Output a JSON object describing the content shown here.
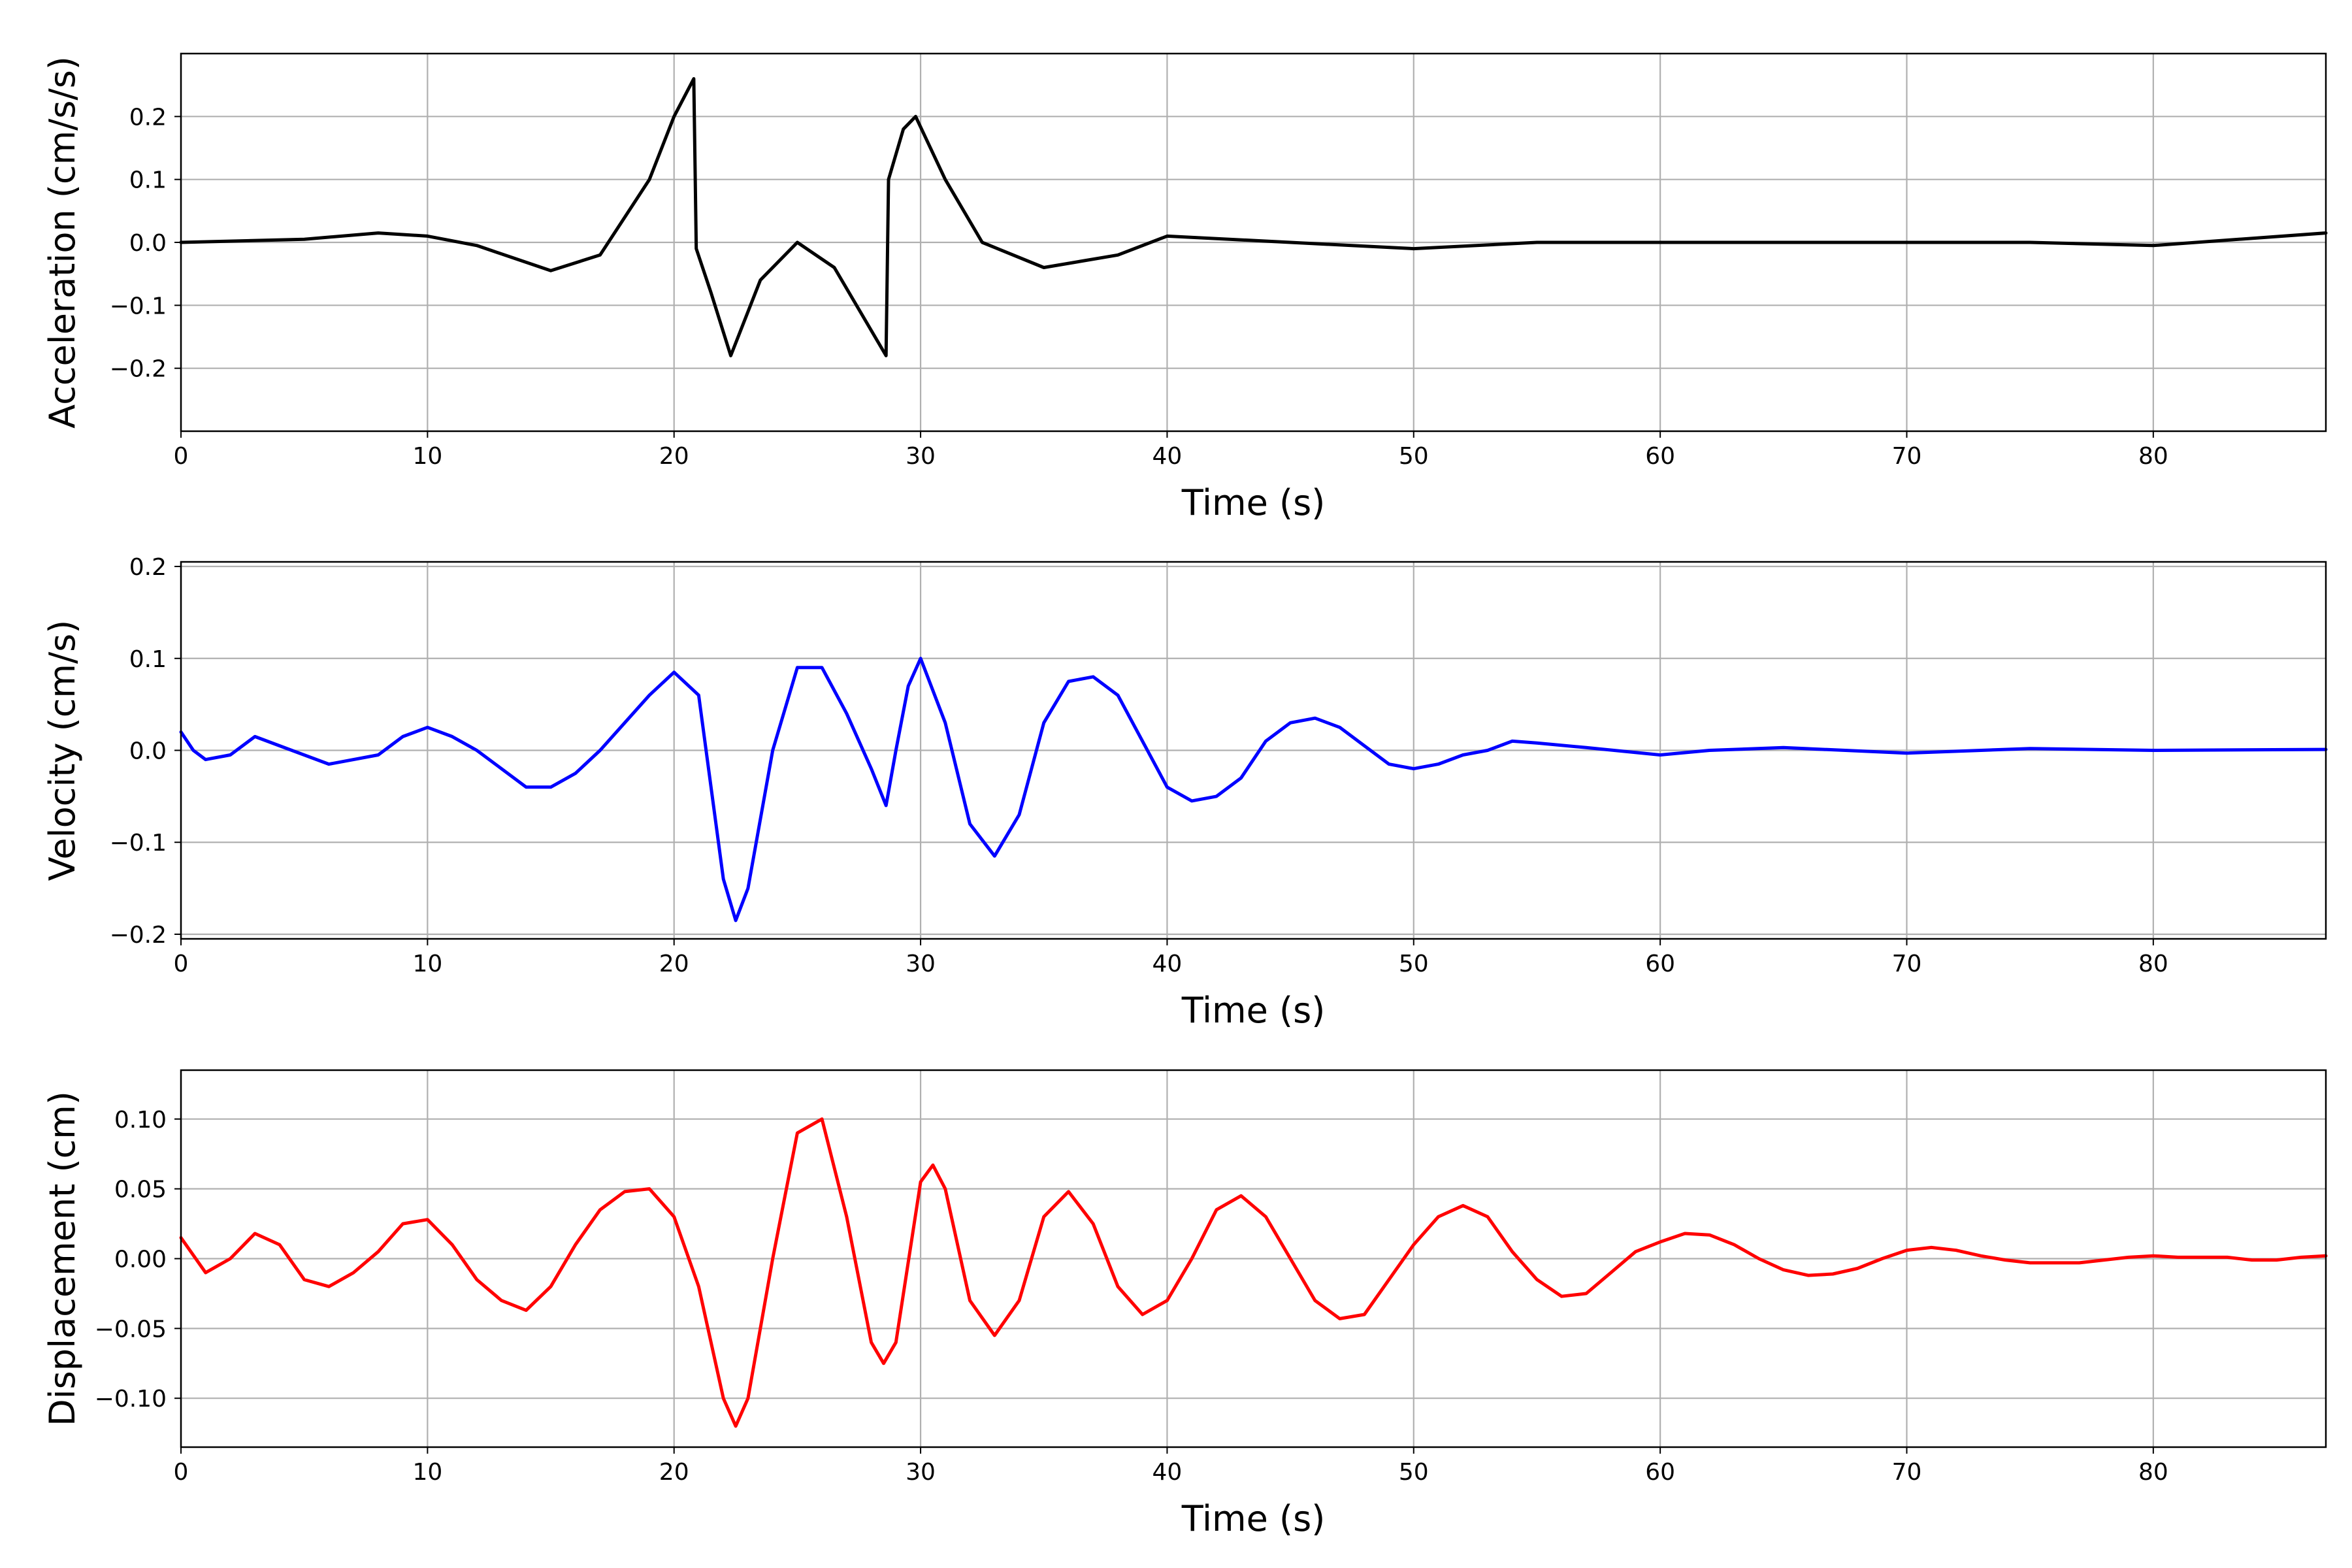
{
  "chart_data": [
    {
      "type": "line",
      "xlabel": "Time (s)",
      "ylabel": "Acceleration (cm/s/s)",
      "xlim": [
        0,
        87
      ],
      "ylim": [
        -0.3,
        0.3
      ],
      "xticks": [
        0,
        10,
        20,
        30,
        40,
        50,
        60,
        70,
        80
      ],
      "xtick_labels": [
        "0",
        "10",
        "20",
        "30",
        "40",
        "50",
        "60",
        "70",
        "80"
      ],
      "yticks": [
        -0.2,
        -0.1,
        0.0,
        0.1,
        0.2
      ],
      "ytick_labels": [
        "−0.2",
        "−0.1",
        "0.0",
        "0.1",
        "0.2"
      ],
      "grid": true,
      "series": [
        {
          "color": "#000000",
          "x": [
            0,
            5,
            8,
            10,
            12,
            15,
            17,
            19,
            20,
            20.8,
            20.9,
            21.5,
            22.3,
            23.5,
            25,
            26.5,
            28,
            28.6,
            28.7,
            29.3,
            29.8,
            31,
            32.5,
            35,
            38,
            40,
            45,
            50,
            55,
            60,
            65,
            70,
            75,
            80,
            87
          ],
          "y": [
            0.0,
            0.005,
            0.015,
            0.01,
            -0.005,
            -0.045,
            -0.02,
            0.1,
            0.2,
            0.26,
            -0.01,
            -0.08,
            -0.18,
            -0.06,
            0.0,
            -0.04,
            -0.14,
            -0.18,
            0.1,
            0.18,
            0.2,
            0.1,
            0.0,
            -0.04,
            -0.02,
            0.01,
            0.0,
            -0.01,
            0.0,
            0.0,
            0.0,
            0.0,
            0.0,
            -0.005,
            0.015
          ]
        }
      ]
    },
    {
      "type": "line",
      "xlabel": "Time (s)",
      "ylabel": "Velocity (cm/s)",
      "xlim": [
        0,
        87
      ],
      "ylim": [
        -0.205,
        0.205
      ],
      "xticks": [
        0,
        10,
        20,
        30,
        40,
        50,
        60,
        70,
        80
      ],
      "xtick_labels": [
        "0",
        "10",
        "20",
        "30",
        "40",
        "50",
        "60",
        "70",
        "80"
      ],
      "yticks": [
        -0.2,
        -0.1,
        0.0,
        0.1,
        0.2
      ],
      "ytick_labels": [
        "−0.2",
        "−0.1",
        "0.0",
        "0.1",
        "0.2"
      ],
      "grid": true,
      "series": [
        {
          "color": "#0000ff",
          "x": [
            0,
            0.5,
            1,
            2,
            3,
            4,
            6,
            8,
            9,
            10,
            11,
            12,
            13,
            14,
            15,
            16,
            17,
            18,
            19,
            20,
            21,
            22,
            22.5,
            23,
            24,
            25,
            26,
            27,
            28,
            28.6,
            29,
            29.5,
            30,
            31,
            32,
            33,
            34,
            35,
            36,
            37,
            38,
            39,
            40,
            41,
            42,
            43,
            44,
            45,
            46,
            47,
            48,
            49,
            50,
            51,
            52,
            53,
            54,
            55,
            57,
            60,
            62,
            65,
            70,
            75,
            80,
            87
          ],
          "y": [
            0.02,
            0.0,
            -0.01,
            -0.005,
            0.015,
            0.005,
            -0.015,
            -0.005,
            0.015,
            0.025,
            0.015,
            0.0,
            -0.02,
            -0.04,
            -0.04,
            -0.025,
            0.0,
            0.03,
            0.06,
            0.085,
            0.06,
            -0.14,
            -0.185,
            -0.15,
            0.0,
            0.09,
            0.09,
            0.04,
            -0.02,
            -0.06,
            0.0,
            0.07,
            0.1,
            0.03,
            -0.08,
            -0.115,
            -0.07,
            0.03,
            0.075,
            0.08,
            0.06,
            0.01,
            -0.04,
            -0.055,
            -0.05,
            -0.03,
            0.01,
            0.03,
            0.035,
            0.025,
            0.005,
            -0.015,
            -0.02,
            -0.015,
            -0.005,
            0.0,
            0.01,
            0.008,
            0.003,
            -0.005,
            0.0,
            0.003,
            -0.003,
            0.002,
            0.0,
            0.001
          ]
        }
      ]
    },
    {
      "type": "line",
      "xlabel": "Time (s)",
      "ylabel": "Displacement (cm)",
      "xlim": [
        0,
        87
      ],
      "ylim": [
        -0.135,
        0.135
      ],
      "xticks": [
        0,
        10,
        20,
        30,
        40,
        50,
        60,
        70,
        80
      ],
      "xtick_labels": [
        "0",
        "10",
        "20",
        "30",
        "40",
        "50",
        "60",
        "70",
        "80"
      ],
      "yticks": [
        -0.1,
        -0.05,
        0.0,
        0.05,
        0.1
      ],
      "ytick_labels": [
        "−0.10",
        "−0.05",
        "0.00",
        "0.05",
        "0.10"
      ],
      "grid": true,
      "series": [
        {
          "color": "#ff0000",
          "x": [
            0,
            1,
            2,
            3,
            4,
            5,
            6,
            7,
            8,
            9,
            10,
            11,
            12,
            13,
            14,
            15,
            16,
            17,
            18,
            19,
            20,
            21,
            22,
            22.5,
            23,
            24,
            25,
            26,
            27,
            28,
            28.5,
            29,
            30,
            30.5,
            31,
            32,
            33,
            34,
            35,
            36,
            37,
            38,
            39,
            40,
            41,
            42,
            43,
            44,
            45,
            46,
            47,
            48,
            49,
            50,
            51,
            52,
            53,
            54,
            55,
            56,
            57,
            58,
            59,
            60,
            61,
            62,
            63,
            64,
            65,
            66,
            67,
            68,
            69,
            70,
            71,
            72,
            73,
            74,
            75,
            76,
            77,
            78,
            79,
            80,
            81,
            82,
            83,
            84,
            85,
            86,
            87
          ],
          "y": [
            0.015,
            -0.01,
            0.0,
            0.018,
            0.01,
            -0.015,
            -0.02,
            -0.01,
            0.005,
            0.025,
            0.028,
            0.01,
            -0.015,
            -0.03,
            -0.037,
            -0.02,
            0.01,
            0.035,
            0.048,
            0.05,
            0.03,
            -0.02,
            -0.1,
            -0.12,
            -0.1,
            0.0,
            0.09,
            0.1,
            0.03,
            -0.06,
            -0.075,
            -0.06,
            0.055,
            0.067,
            0.05,
            -0.03,
            -0.055,
            -0.03,
            0.03,
            0.048,
            0.025,
            -0.02,
            -0.04,
            -0.03,
            0.0,
            0.035,
            0.045,
            0.03,
            0.0,
            -0.03,
            -0.043,
            -0.04,
            -0.015,
            0.01,
            0.03,
            0.038,
            0.03,
            0.005,
            -0.015,
            -0.027,
            -0.025,
            -0.01,
            0.005,
            0.012,
            0.018,
            0.017,
            0.01,
            0.0,
            -0.008,
            -0.012,
            -0.011,
            -0.007,
            0.0,
            0.006,
            0.008,
            0.006,
            0.002,
            -0.001,
            -0.003,
            -0.003,
            -0.003,
            -0.001,
            0.001,
            0.002,
            0.001,
            0.001,
            0.001,
            -0.001,
            -0.001,
            0.001,
            0.002
          ]
        }
      ]
    }
  ]
}
